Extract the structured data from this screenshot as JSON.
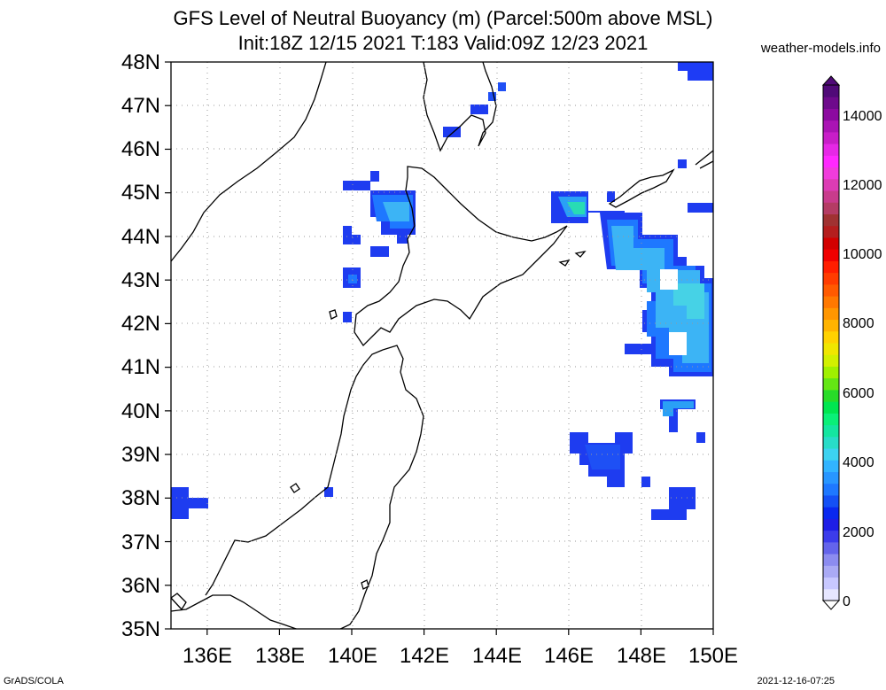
{
  "title_line1": "GFS Level of Neutral Buoyancy (m) (Parcel:500m above MSL)",
  "title_line2": "Init:18Z 12/15 2021 T:183 Valid:09Z 12/23 2021",
  "site": "weather-models.info",
  "footer_left": "GrADS/COLA",
  "footer_right": "2021-12-16-07:25",
  "map": {
    "lon_range": [
      135,
      150
    ],
    "lat_range": [
      35,
      48
    ],
    "lat_ticks": [
      "35N",
      "36N",
      "37N",
      "38N",
      "39N",
      "40N",
      "41N",
      "42N",
      "43N",
      "44N",
      "45N",
      "46N",
      "47N",
      "48N"
    ],
    "lon_ticks": [
      "136E",
      "138E",
      "140E",
      "142E",
      "144E",
      "146E",
      "148E",
      "150E"
    ],
    "lon_tick_values": [
      136,
      138,
      140,
      142,
      144,
      146,
      148,
      150
    ],
    "lat_tick_values": [
      35,
      36,
      37,
      38,
      39,
      40,
      41,
      42,
      43,
      44,
      45,
      46,
      47,
      48
    ]
  },
  "colorbar": {
    "labels": [
      "0",
      "2000",
      "4000",
      "6000",
      "8000",
      "10000",
      "12000",
      "14000"
    ],
    "colors": [
      "#e6e6ff",
      "#c8c8ff",
      "#aaaaf5",
      "#8c8cf0",
      "#6464eb",
      "#3c3ceb",
      "#1e1ee6",
      "#0a28f0",
      "#1450f5",
      "#1e78ff",
      "#2896ff",
      "#32b4ff",
      "#3cd2f0",
      "#28dcc8",
      "#14e6a0",
      "#0af078",
      "#00e650",
      "#28dc28",
      "#64e614",
      "#a0f000",
      "#d2f000",
      "#f0e600",
      "#ffd200",
      "#ffb400",
      "#ff9600",
      "#ff7800",
      "#ff5a00",
      "#ff3c00",
      "#ff1e00",
      "#f00000",
      "#d20000",
      "#b41e1e",
      "#a03232",
      "#b43c64",
      "#c83c8c",
      "#dc3cb4",
      "#f03cdc",
      "#ff28ff",
      "#e628e6",
      "#c81ec8",
      "#aa14b4",
      "#8c0aa0",
      "#6e0a8c",
      "#500a78"
    ]
  }
}
